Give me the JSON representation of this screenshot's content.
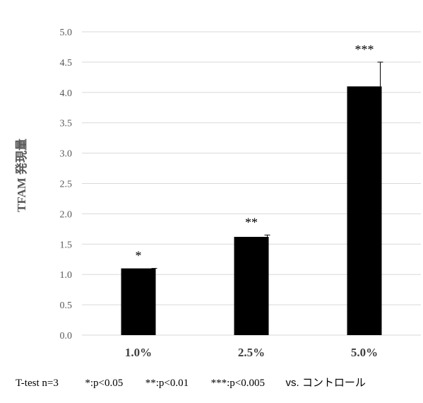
{
  "chart_data": {
    "type": "bar",
    "categories": [
      "1.0%",
      "2.5%",
      "5.0%"
    ],
    "values": [
      1.1,
      1.62,
      4.1
    ],
    "error": [
      0.0,
      0.03,
      0.4
    ],
    "significance": [
      "*",
      "**",
      "***"
    ],
    "ylabel": "TFAM 発現量",
    "xlabel": "",
    "title": "",
    "ylim": [
      0,
      5.0
    ],
    "yticks": [
      "0.0",
      "0.5",
      "1.0",
      "1.5",
      "2.0",
      "2.5",
      "3.0",
      "3.5",
      "4.0",
      "4.5",
      "5.0"
    ],
    "grid": true,
    "bar_color": "#000000",
    "grid_color": "#d9d9d9"
  },
  "footnote": {
    "test": "T-test n=3",
    "p1": "*:p<0.05",
    "p2": "**:p<0.01",
    "p3": "***:p<0.005",
    "vs": "vs. コントロール"
  }
}
